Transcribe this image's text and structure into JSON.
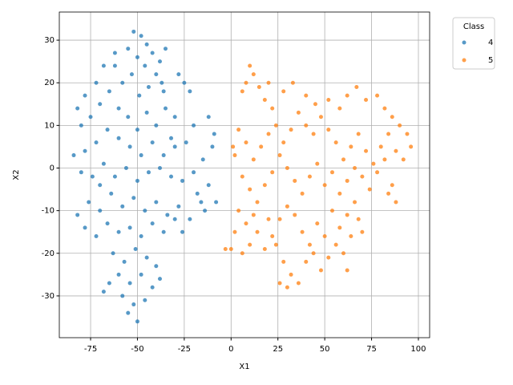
{
  "chart_data": {
    "type": "scatter",
    "xlabel": "X1",
    "ylabel": "X2",
    "xlim": [
      -91.7,
      106
    ],
    "ylim": [
      -39.8,
      36.6
    ],
    "xticks": [
      -75,
      -50,
      -25,
      0,
      25,
      50,
      75,
      100
    ],
    "yticks": [
      -30,
      -20,
      -10,
      0,
      10,
      20,
      30
    ],
    "grid": true,
    "legend_title": "Class",
    "legend_loc": "upper right outside",
    "series": [
      {
        "name": "4",
        "color": "#1f77b4",
        "x": [
          -52,
          -48,
          -45,
          -55,
          -50,
          -42,
          -38,
          -46,
          -53,
          -40,
          -35,
          -58,
          -44,
          -36,
          -49,
          -62,
          -68,
          -72,
          -78,
          -82,
          -80,
          -75,
          -70,
          -65,
          -60,
          -55,
          -50,
          -45,
          -40,
          -35,
          -30,
          -25,
          -22,
          -28,
          -20,
          -24,
          -30,
          -36,
          -42,
          -48,
          -54,
          -60,
          -66,
          -72,
          -78,
          -84,
          -80,
          -74,
          -68,
          -62,
          -56,
          -50,
          -44,
          -38,
          -32,
          -26,
          -20,
          -15,
          -12,
          -10,
          -8,
          -14,
          -18,
          -22,
          -28,
          -34,
          -40,
          -46,
          -52,
          -58,
          -64,
          -70,
          -76,
          -82,
          -78,
          -72,
          -66,
          -60,
          -54,
          -48,
          -42,
          -36,
          -30,
          -26,
          -63,
          -57,
          -51,
          -45,
          -40,
          -60,
          -54,
          -48,
          -42,
          -38,
          -58,
          -52,
          -46,
          -55,
          -50,
          -65,
          -68,
          -9,
          -12,
          -16,
          -62,
          -37,
          -32,
          -70
        ],
        "y": [
          32,
          31,
          29,
          28,
          26,
          27,
          25,
          24,
          22,
          22,
          28,
          20,
          19,
          18,
          17,
          24,
          24,
          20,
          17,
          14,
          10,
          12,
          15,
          18,
          14,
          12,
          9,
          13,
          10,
          14,
          12,
          20,
          18,
          22,
          10,
          6,
          5,
          3,
          6,
          3,
          5,
          7,
          9,
          6,
          4,
          3,
          -1,
          -2,
          1,
          -2,
          0,
          -3,
          -1,
          0,
          -2,
          -3,
          -1,
          2,
          -4,
          5,
          -8,
          -10,
          -6,
          -12,
          -9,
          -11,
          -8,
          -10,
          -7,
          -9,
          -6,
          -10,
          -8,
          -11,
          -14,
          -16,
          -13,
          -15,
          -14,
          -16,
          -13,
          -15,
          -12,
          -15,
          -20,
          -22,
          -19,
          -21,
          -23,
          -25,
          -27,
          -25,
          -28,
          -26,
          -30,
          -32,
          -31,
          -34,
          -36,
          -27,
          -29,
          8,
          12,
          -8,
          27,
          20,
          7,
          -4
        ]
      },
      {
        "name": "5",
        "color": "#ff7f0e",
        "x": [
          10,
          12,
          8,
          15,
          6,
          18,
          22,
          28,
          33,
          40,
          45,
          52,
          58,
          62,
          67,
          72,
          78,
          82,
          86,
          90,
          94,
          96,
          92,
          88,
          84,
          80,
          76,
          72,
          68,
          64,
          60,
          56,
          52,
          48,
          44,
          40,
          36,
          32,
          28,
          24,
          20,
          16,
          12,
          8,
          4,
          2,
          6,
          10,
          14,
          18,
          22,
          26,
          30,
          34,
          38,
          42,
          46,
          50,
          54,
          58,
          62,
          66,
          70,
          74,
          78,
          82,
          86,
          88,
          84,
          66,
          62,
          58,
          54,
          50,
          46,
          42,
          38,
          34,
          30,
          26,
          22,
          18,
          14,
          10,
          6,
          2,
          4,
          8,
          28,
          32,
          36,
          30,
          40,
          48,
          52,
          56,
          60,
          64,
          68,
          70,
          62,
          12,
          20,
          24,
          44,
          0,
          -3,
          1,
          20,
          26
        ],
        "y": [
          24,
          22,
          20,
          19,
          18,
          16,
          14,
          18,
          20,
          17,
          15,
          16,
          14,
          17,
          19,
          16,
          17,
          14,
          12,
          10,
          8,
          5,
          2,
          4,
          8,
          5,
          1,
          4,
          8,
          5,
          2,
          6,
          9,
          12,
          8,
          10,
          13,
          9,
          6,
          10,
          8,
          5,
          2,
          6,
          9,
          3,
          -2,
          -5,
          -8,
          -4,
          -1,
          3,
          0,
          -3,
          -6,
          -2,
          1,
          -4,
          -1,
          -6,
          -3,
          0,
          -2,
          -5,
          -1,
          2,
          -4,
          -8,
          -6,
          -8,
          -11,
          -14,
          -10,
          -16,
          -13,
          -18,
          -15,
          -11,
          -9,
          -12,
          -16,
          -19,
          -15,
          -18,
          -20,
          -15,
          -10,
          -13,
          -22,
          -25,
          -27,
          -28,
          -22,
          -24,
          -21,
          -18,
          -20,
          -16,
          -12,
          -15,
          -24,
          -11,
          -12,
          -18,
          -20,
          -19,
          -19,
          5,
          20,
          -27
        ]
      }
    ]
  }
}
